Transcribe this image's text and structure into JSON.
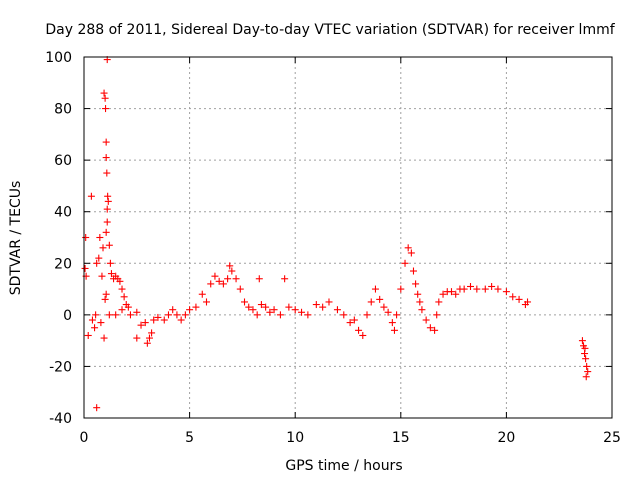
{
  "chart_data": {
    "type": "scatter",
    "title": "Day 288 of 2011, Sidereal Day-to-day VTEC variation (SDTVAR) for receiver lmmf",
    "xlabel": "GPS time / hours",
    "ylabel": "SDTVAR / TECUs",
    "xlim": [
      0,
      25
    ],
    "ylim": [
      -40,
      100
    ],
    "x_ticks": [
      "0",
      "5",
      "10",
      "15",
      "20",
      "25"
    ],
    "y_ticks": [
      "-40",
      "-20",
      "0",
      "20",
      "40",
      "60",
      "80",
      "100"
    ],
    "grid": true,
    "marker": "+",
    "color": "#ff0000",
    "series": [
      {
        "name": "SDTVAR",
        "points": [
          [
            0.05,
            18
          ],
          [
            0.08,
            30
          ],
          [
            0.1,
            15
          ],
          [
            0.2,
            -8
          ],
          [
            0.35,
            46
          ],
          [
            0.4,
            -2
          ],
          [
            0.5,
            -5
          ],
          [
            0.55,
            0
          ],
          [
            0.6,
            20
          ],
          [
            0.6,
            -36
          ],
          [
            0.7,
            22
          ],
          [
            0.75,
            30
          ],
          [
            0.8,
            -3
          ],
          [
            0.85,
            15
          ],
          [
            0.9,
            26
          ],
          [
            0.95,
            86
          ],
          [
            0.95,
            -9
          ],
          [
            1.0,
            84
          ],
          [
            1.02,
            80
          ],
          [
            1.05,
            67
          ],
          [
            1.05,
            61
          ],
          [
            1.08,
            55
          ],
          [
            1.1,
            99
          ],
          [
            1.12,
            46
          ],
          [
            1.15,
            44
          ],
          [
            1.1,
            41
          ],
          [
            1.05,
            32
          ],
          [
            1.1,
            36
          ],
          [
            1.0,
            6
          ],
          [
            1.05,
            8
          ],
          [
            1.2,
            27
          ],
          [
            1.25,
            20
          ],
          [
            1.3,
            16
          ],
          [
            1.4,
            14
          ],
          [
            1.5,
            15
          ],
          [
            1.6,
            14
          ],
          [
            1.7,
            13
          ],
          [
            1.8,
            10
          ],
          [
            1.9,
            7
          ],
          [
            2.0,
            4
          ],
          [
            2.1,
            3
          ],
          [
            1.2,
            0
          ],
          [
            1.5,
            0
          ],
          [
            1.8,
            2
          ],
          [
            2.2,
            0
          ],
          [
            2.5,
            1
          ],
          [
            2.5,
            -9
          ],
          [
            2.7,
            -4
          ],
          [
            2.9,
            -3
          ],
          [
            3.0,
            -11
          ],
          [
            3.1,
            -9
          ],
          [
            3.2,
            -7
          ],
          [
            3.3,
            -2
          ],
          [
            3.5,
            -1
          ],
          [
            3.8,
            -2
          ],
          [
            4.0,
            0
          ],
          [
            4.2,
            2
          ],
          [
            4.4,
            0
          ],
          [
            4.6,
            -2
          ],
          [
            4.8,
            0
          ],
          [
            5.0,
            2
          ],
          [
            5.3,
            3
          ],
          [
            5.6,
            8
          ],
          [
            5.8,
            5
          ],
          [
            6.0,
            12
          ],
          [
            6.2,
            15
          ],
          [
            6.4,
            13
          ],
          [
            6.6,
            12
          ],
          [
            6.8,
            14
          ],
          [
            6.9,
            19
          ],
          [
            7.0,
            17
          ],
          [
            7.2,
            14
          ],
          [
            7.4,
            10
          ],
          [
            7.6,
            5
          ],
          [
            7.8,
            3
          ],
          [
            8.0,
            2
          ],
          [
            8.2,
            0
          ],
          [
            8.3,
            14
          ],
          [
            8.4,
            4
          ],
          [
            8.6,
            3
          ],
          [
            8.8,
            1
          ],
          [
            9.0,
            2
          ],
          [
            9.3,
            0
          ],
          [
            9.5,
            14
          ],
          [
            9.7,
            3
          ],
          [
            10.0,
            2
          ],
          [
            10.3,
            1
          ],
          [
            10.6,
            0
          ],
          [
            11.0,
            4
          ],
          [
            11.3,
            3
          ],
          [
            11.6,
            5
          ],
          [
            12.0,
            2
          ],
          [
            12.3,
            0
          ],
          [
            12.6,
            -3
          ],
          [
            12.8,
            -2
          ],
          [
            13.0,
            -6
          ],
          [
            13.2,
            -8
          ],
          [
            13.4,
            0
          ],
          [
            13.6,
            5
          ],
          [
            13.8,
            10
          ],
          [
            14.0,
            6
          ],
          [
            14.2,
            3
          ],
          [
            14.4,
            1
          ],
          [
            14.6,
            -3
          ],
          [
            14.7,
            -6
          ],
          [
            14.8,
            0
          ],
          [
            15.0,
            10
          ],
          [
            15.2,
            20
          ],
          [
            15.35,
            26
          ],
          [
            15.5,
            24
          ],
          [
            15.6,
            17
          ],
          [
            15.7,
            12
          ],
          [
            15.8,
            8
          ],
          [
            15.9,
            5
          ],
          [
            16.0,
            2
          ],
          [
            16.2,
            -2
          ],
          [
            16.4,
            -5
          ],
          [
            16.6,
            -6
          ],
          [
            16.7,
            0
          ],
          [
            16.8,
            5
          ],
          [
            17.0,
            8
          ],
          [
            17.2,
            9
          ],
          [
            17.4,
            9
          ],
          [
            17.6,
            8
          ],
          [
            17.8,
            10
          ],
          [
            18.0,
            10
          ],
          [
            18.3,
            11
          ],
          [
            18.6,
            10
          ],
          [
            19.0,
            10
          ],
          [
            19.3,
            11
          ],
          [
            19.6,
            10
          ],
          [
            20.0,
            9
          ],
          [
            20.3,
            7
          ],
          [
            20.6,
            6
          ],
          [
            20.9,
            4
          ],
          [
            21.0,
            5
          ],
          [
            23.6,
            -10
          ],
          [
            23.65,
            -12
          ],
          [
            23.7,
            -15
          ],
          [
            23.75,
            -17
          ],
          [
            23.8,
            -20
          ],
          [
            23.78,
            -24
          ],
          [
            23.85,
            -22
          ],
          [
            23.72,
            -13
          ]
        ]
      }
    ]
  }
}
